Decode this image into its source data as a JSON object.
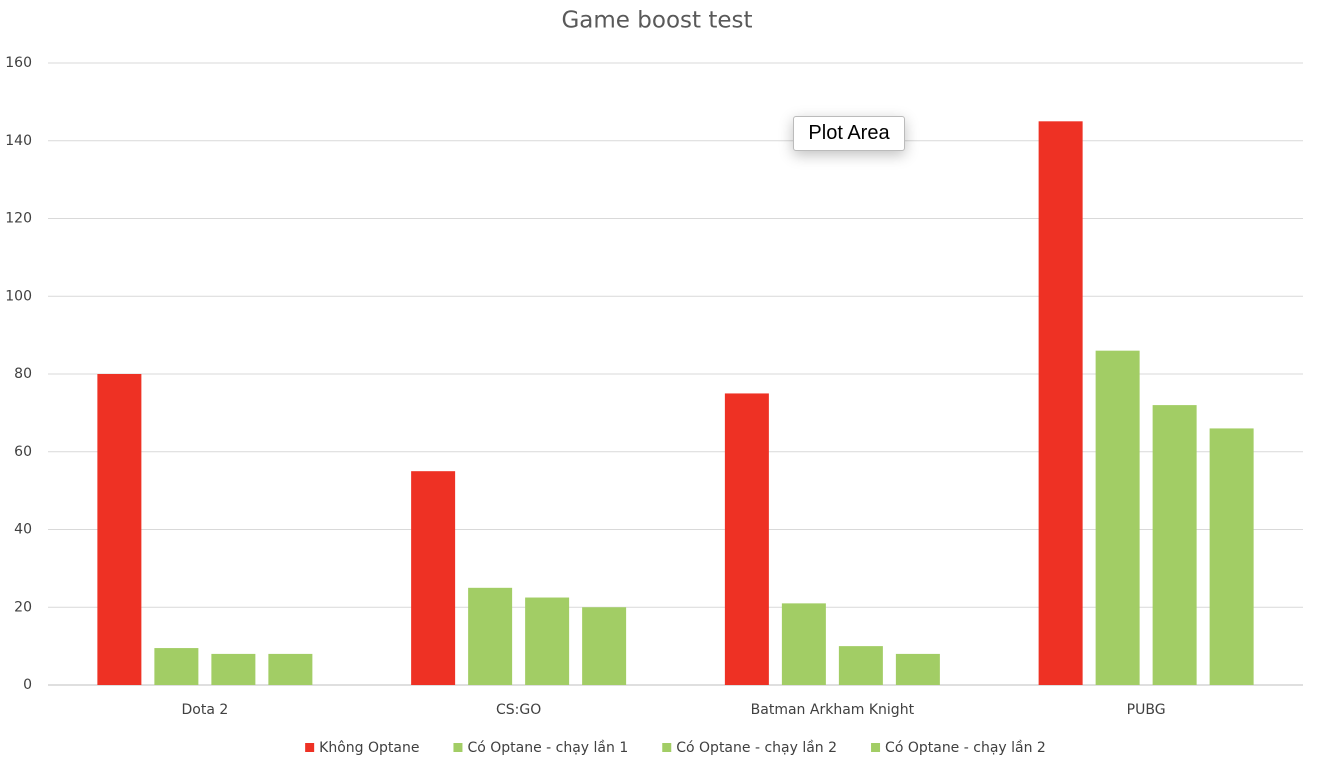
{
  "chart_data": {
    "type": "bar",
    "title": "Game boost test",
    "categories": [
      "Dota 2",
      "CS:GO",
      "Batman Arkham Knight",
      "PUBG"
    ],
    "series": [
      {
        "name": "Không Optane",
        "color": "#ee3124",
        "values": [
          80,
          55,
          75,
          145
        ]
      },
      {
        "name": "Có Optane - chạy lần 1",
        "color": "#a2cd65",
        "values": [
          9.5,
          25,
          21,
          86
        ]
      },
      {
        "name": "Có Optane - chạy lần 2",
        "color": "#a2cd65",
        "values": [
          8,
          22.5,
          10,
          72
        ]
      },
      {
        "name": "Có Optane - chạy lần 2",
        "color": "#a2cd65",
        "values": [
          8,
          20,
          8,
          66
        ]
      }
    ],
    "ylim": [
      0,
      160
    ],
    "yticks": [
      0,
      20,
      40,
      60,
      80,
      100,
      120,
      140,
      160
    ],
    "grid": true,
    "legend": "bottom",
    "tooltip": "Plot Area"
  }
}
